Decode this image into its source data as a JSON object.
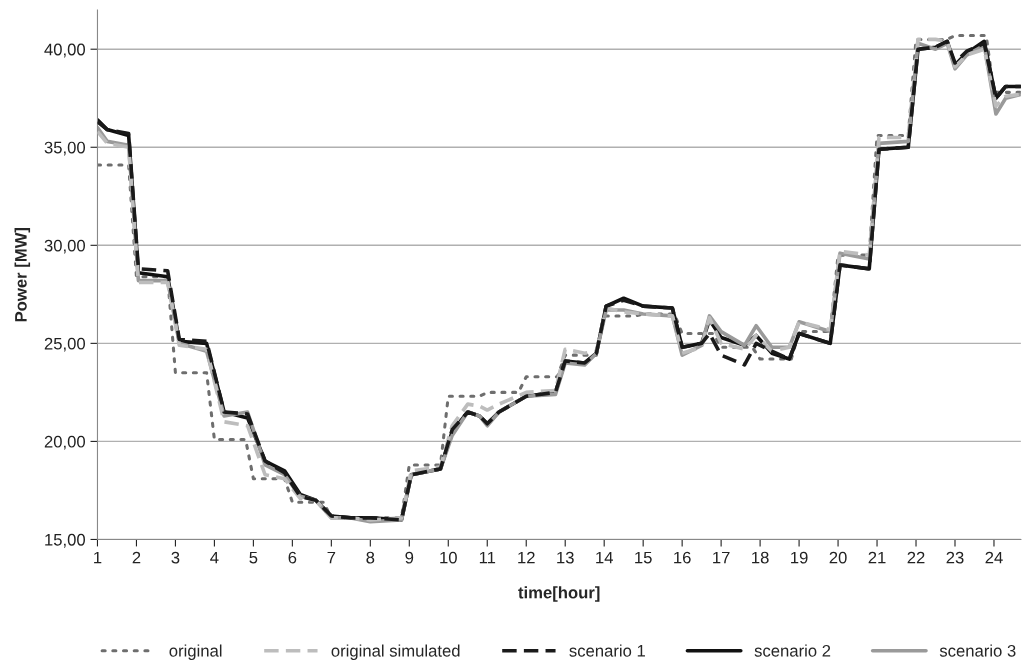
{
  "chart_data": {
    "type": "line",
    "xlabel": "time[hour]",
    "ylabel": "Power [MW]",
    "xlim": [
      1,
      24.69
    ],
    "ylim": [
      15,
      42
    ],
    "xticks": [
      1,
      2,
      3,
      4,
      5,
      6,
      7,
      8,
      9,
      10,
      11,
      12,
      13,
      14,
      15,
      16,
      17,
      18,
      19,
      20,
      21,
      22,
      23,
      24
    ],
    "yticks": [
      {
        "value": 15,
        "label": "15,00"
      },
      {
        "value": 20,
        "label": "20,00"
      },
      {
        "value": 25,
        "label": "25,00"
      },
      {
        "value": 30,
        "label": "30,00"
      },
      {
        "value": 35,
        "label": "35,00"
      },
      {
        "value": 40,
        "label": "40,00"
      }
    ],
    "grid": "y",
    "legend": "bottom",
    "marker": "none",
    "x": [
      1,
      1.25,
      1.8,
      2.05,
      2.8,
      3.1,
      3.8,
      4.25,
      4.85,
      5.3,
      5.8,
      6.2,
      6.6,
      7.0,
      7.5,
      8.0,
      8.8,
      9.05,
      9.8,
      10.1,
      10.5,
      10.8,
      11.0,
      11.3,
      12.0,
      12.75,
      13.0,
      13.5,
      13.8,
      14.05,
      14.5,
      15.0,
      15.75,
      16.0,
      16.5,
      16.7,
      17.0,
      17.6,
      17.9,
      18.3,
      18.75,
      19.0,
      19.8,
      20.05,
      20.8,
      21.05,
      21.8,
      22.05,
      22.5,
      22.8,
      23.0,
      23.3,
      23.75,
      24.05,
      24.3,
      24.69
    ],
    "series": [
      {
        "name": "original",
        "color": "#6e6e6e",
        "line_style": "dotted",
        "x": [
          1,
          1.8,
          2.0,
          2.8,
          3.0,
          3.8,
          4.0,
          4.8,
          5.0,
          5.8,
          6.0,
          6.8,
          7.0,
          7.8,
          8.0,
          8.8,
          9.0,
          9.8,
          10.0,
          10.8,
          11.0,
          11.8,
          12.0,
          12.8,
          13.0,
          13.8,
          14.0,
          14.8,
          15.0,
          15.8,
          16.0,
          16.8,
          17.0,
          17.8,
          18.0,
          18.8,
          19.0,
          19.8,
          20.0,
          20.8,
          21.0,
          21.8,
          22.0,
          22.8,
          23.0,
          23.8,
          24.0,
          24.69
        ],
        "values": [
          34.1,
          34.1,
          28.4,
          28.4,
          23.5,
          23.5,
          20.1,
          20.1,
          18.1,
          18.1,
          16.9,
          16.9,
          16.1,
          16.1,
          16.1,
          16.1,
          18.8,
          18.8,
          22.3,
          22.3,
          22.5,
          22.5,
          23.3,
          23.3,
          24.4,
          24.4,
          26.4,
          26.4,
          26.5,
          26.5,
          25.5,
          25.5,
          24.8,
          24.8,
          24.2,
          24.2,
          25.6,
          25.6,
          29.5,
          29.5,
          35.6,
          35.6,
          40.5,
          40.5,
          40.7,
          40.7,
          37.8,
          37.8
        ]
      },
      {
        "name": "original simulated",
        "color": "#bdbdbd",
        "line_style": "dashed",
        "values": [
          35.8,
          35.2,
          35.0,
          28.1,
          28.1,
          24.9,
          24.7,
          21.0,
          20.8,
          18.3,
          18.1,
          17.1,
          17.0,
          16.1,
          16.1,
          16.0,
          16.1,
          18.5,
          18.7,
          20.8,
          21.9,
          21.8,
          21.6,
          21.9,
          22.5,
          22.6,
          24.7,
          24.5,
          24.6,
          26.8,
          26.6,
          26.5,
          26.4,
          24.5,
          24.8,
          26.3,
          25.0,
          24.7,
          25.4,
          24.6,
          24.8,
          26.1,
          25.7,
          29.7,
          29.5,
          35.5,
          35.5,
          40.5,
          40.5,
          40.4,
          39.1,
          39.7,
          40.0,
          37.1,
          37.6,
          37.7
        ]
      },
      {
        "name": "scenario 1",
        "color": "#1a1a1a",
        "line_style": "dashed",
        "values": [
          36.3,
          35.9,
          35.7,
          28.8,
          28.7,
          25.2,
          25.1,
          21.5,
          21.4,
          19.0,
          18.4,
          17.2,
          17.0,
          16.2,
          16.1,
          16.1,
          16.0,
          18.3,
          18.6,
          20.6,
          21.5,
          21.3,
          20.9,
          21.5,
          22.3,
          22.5,
          24.1,
          24.0,
          24.5,
          26.9,
          27.2,
          26.9,
          26.8,
          24.8,
          25.0,
          25.5,
          24.4,
          23.9,
          25.0,
          24.6,
          24.2,
          25.5,
          25.0,
          29.0,
          28.8,
          34.9,
          35.0,
          40.0,
          40.1,
          40.4,
          39.3,
          39.9,
          40.3,
          37.5,
          38.1,
          38.1
        ]
      },
      {
        "name": "scenario 2",
        "color": "#111111",
        "line_style": "solid",
        "values": [
          36.4,
          35.9,
          35.6,
          28.6,
          28.4,
          25.1,
          25.0,
          21.5,
          21.2,
          19.0,
          18.5,
          17.3,
          17.0,
          16.2,
          16.1,
          16.1,
          16.0,
          18.3,
          18.6,
          20.5,
          21.5,
          21.3,
          20.9,
          21.5,
          22.3,
          22.5,
          24.1,
          24.0,
          24.5,
          26.9,
          27.3,
          26.9,
          26.8,
          24.8,
          25.0,
          26.2,
          25.3,
          24.9,
          25.4,
          24.5,
          24.2,
          25.5,
          25.0,
          29.0,
          28.8,
          34.9,
          35.0,
          40.0,
          40.1,
          40.4,
          39.2,
          39.8,
          40.4,
          37.5,
          38.1,
          38.1
        ]
      },
      {
        "name": "scenario 3",
        "color": "#9a9a9a",
        "line_style": "solid",
        "values": [
          36.0,
          35.3,
          35.1,
          28.2,
          28.2,
          25.0,
          24.6,
          21.3,
          21.5,
          18.8,
          18.3,
          17.2,
          17.0,
          16.1,
          16.1,
          15.9,
          16.0,
          18.3,
          18.6,
          20.3,
          21.5,
          21.3,
          20.8,
          21.5,
          22.3,
          22.4,
          24.0,
          23.9,
          24.5,
          26.7,
          26.7,
          26.5,
          26.4,
          24.4,
          24.9,
          26.4,
          25.6,
          24.9,
          25.9,
          24.8,
          24.8,
          26.1,
          25.6,
          29.6,
          29.3,
          35.2,
          35.3,
          40.3,
          40.0,
          40.3,
          39.0,
          39.7,
          40.2,
          36.7,
          37.5,
          37.7
        ]
      }
    ]
  }
}
